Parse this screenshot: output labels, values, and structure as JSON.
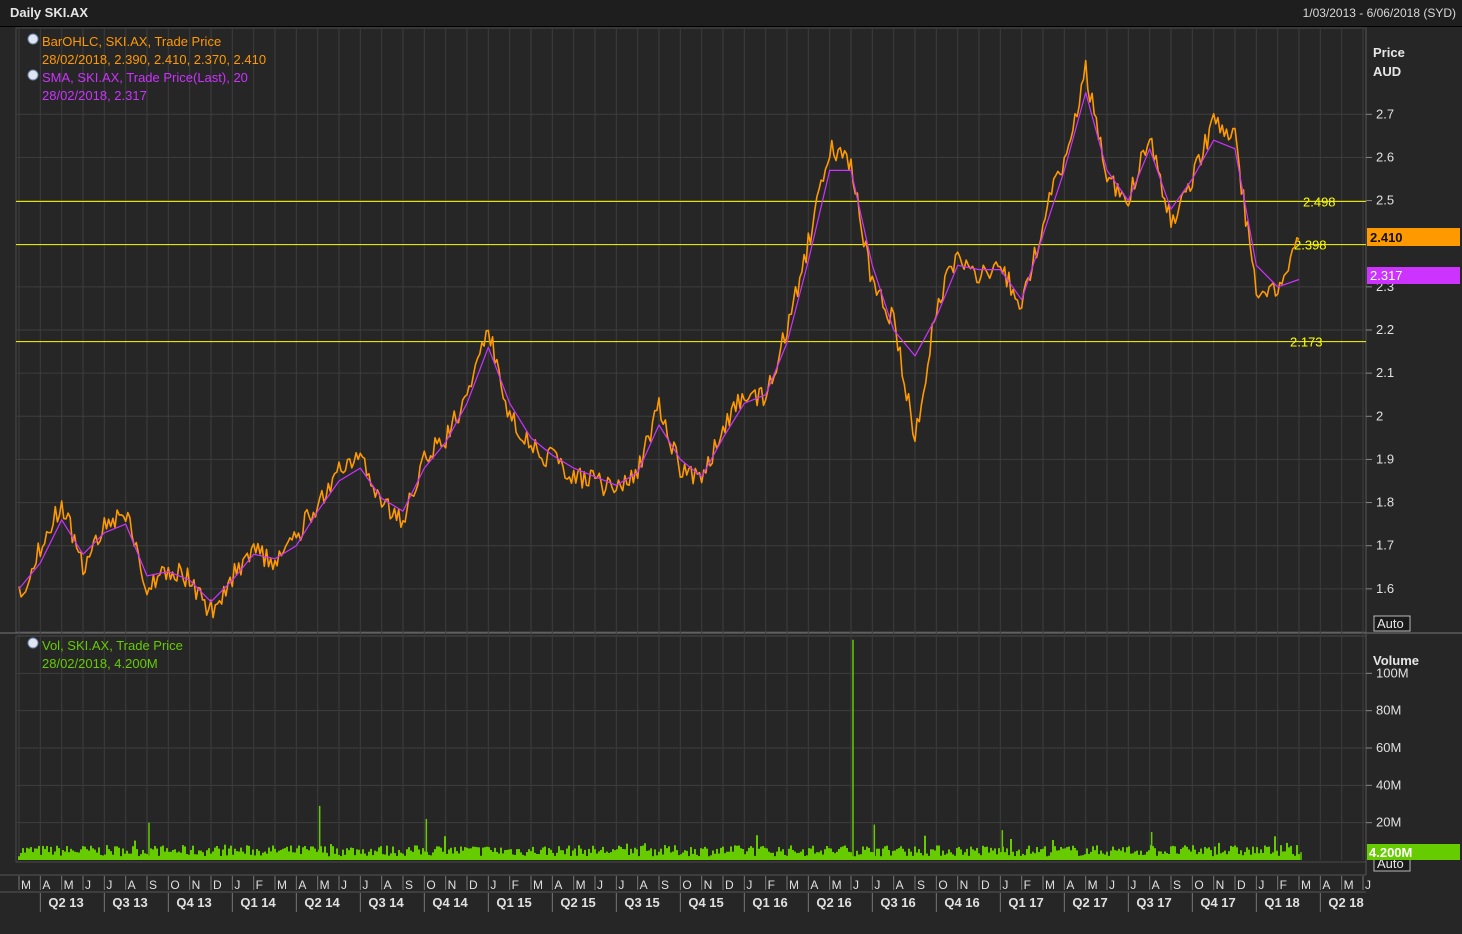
{
  "window": {
    "title": "Daily SKI.AX",
    "date_range": "1/03/2013 - 6/06/2018 (SYD)"
  },
  "colors": {
    "price": "#ff9900",
    "sma": "#cc33ff",
    "volume": "#66cc00",
    "hlines": "#ffff00",
    "bg": "#262626",
    "grid": "#3d3d3d",
    "axis_text": "#e0e0e0"
  },
  "legend": {
    "price_title": "BarOHLC, SKI.AX, Trade Price",
    "price_values": "28/02/2018, 2.390, 2.410, 2.370, 2.410",
    "sma_title": "SMA, SKI.AX, Trade Price(Last),  20",
    "sma_values": "28/02/2018, 2.317",
    "vol_title": "Vol, SKI.AX, Trade Price",
    "vol_values": "28/02/2018, 4.200M"
  },
  "axes": {
    "price_label_1": "Price",
    "price_label_2": "AUD",
    "volume_label": "Volume",
    "auto_button": "Auto",
    "auto_button_2": "Auto"
  },
  "badges": {
    "last_price": "2.410",
    "last_sma": "2.317",
    "last_volume": "4.200M"
  },
  "chart_data": {
    "type": "line",
    "price_ticks": [
      "1.6",
      "1.7",
      "1.8",
      "1.9",
      "2",
      "2.1",
      "2.2",
      "2.3",
      "2.5",
      "2.6",
      "2.7"
    ],
    "price_ylim": [
      1.5,
      2.9
    ],
    "volume_ticks": [
      "20M",
      "40M",
      "60M",
      "80M",
      "100M"
    ],
    "volume_ylim": [
      0,
      120
    ],
    "month_labels": [
      "M",
      "A",
      "M",
      "J",
      "J",
      "A",
      "S",
      "O",
      "N",
      "D",
      "J",
      "F",
      "M",
      "A",
      "M",
      "J",
      "J",
      "A",
      "S",
      "O",
      "N",
      "D",
      "J",
      "F",
      "M",
      "A",
      "M",
      "J",
      "J",
      "A",
      "S",
      "O",
      "N",
      "D",
      "J",
      "F",
      "M",
      "A",
      "M",
      "J",
      "J",
      "A",
      "S",
      "O",
      "N",
      "D",
      "J",
      "F",
      "M",
      "A",
      "M",
      "J",
      "J",
      "A",
      "S",
      "O",
      "N",
      "D",
      "J",
      "F",
      "M",
      "A",
      "M",
      "J"
    ],
    "quarter_labels": [
      "Q2 13",
      "Q3 13",
      "Q4 13",
      "Q1 14",
      "Q2 14",
      "Q3 14",
      "Q4 14",
      "Q1 15",
      "Q2 15",
      "Q3 15",
      "Q4 15",
      "Q1 16",
      "Q2 16",
      "Q3 16",
      "Q4 16",
      "Q1 17",
      "Q2 17",
      "Q3 17",
      "Q4 17",
      "Q1 18",
      "Q2 18"
    ],
    "horizontal_lines": [
      {
        "label": "2.498",
        "value": 2.498
      },
      {
        "label": "2.398",
        "value": 2.398
      },
      {
        "label": "2.173",
        "value": 2.173
      }
    ],
    "series": [
      {
        "name": "BarOHLC, SKI.AX, Trade Price",
        "month_index": [
          0,
          1,
          2,
          3,
          4,
          5,
          6,
          7,
          8,
          9,
          10,
          11,
          12,
          13,
          14,
          15,
          16,
          17,
          18,
          19,
          20,
          21,
          22,
          23,
          24,
          25,
          26,
          27,
          28,
          29,
          30,
          31,
          32,
          33,
          34,
          35,
          36,
          37,
          38,
          39,
          40,
          41,
          42,
          43,
          44,
          45,
          46,
          47,
          48,
          49,
          50,
          51,
          52,
          53,
          54,
          55,
          56,
          57,
          58,
          59,
          60
        ],
        "values": [
          1.58,
          1.7,
          1.8,
          1.65,
          1.75,
          1.78,
          1.6,
          1.65,
          1.62,
          1.55,
          1.63,
          1.7,
          1.65,
          1.72,
          1.8,
          1.87,
          1.9,
          1.8,
          1.76,
          1.9,
          1.95,
          2.05,
          2.2,
          2.0,
          1.93,
          1.9,
          1.86,
          1.85,
          1.83,
          1.87,
          2.02,
          1.88,
          1.85,
          1.97,
          2.05,
          2.05,
          2.2,
          2.4,
          2.62,
          2.58,
          2.3,
          2.22,
          1.95,
          2.25,
          2.38,
          2.33,
          2.35,
          2.25,
          2.45,
          2.6,
          2.8,
          2.55,
          2.5,
          2.65,
          2.45,
          2.55,
          2.68,
          2.65,
          2.28,
          2.3,
          2.41
        ]
      },
      {
        "name": "SMA, SKI.AX, Trade Price(Last),  20",
        "month_index": [
          0,
          1,
          2,
          3,
          4,
          5,
          6,
          7,
          8,
          9,
          10,
          11,
          12,
          13,
          14,
          15,
          16,
          17,
          18,
          19,
          20,
          21,
          22,
          23,
          24,
          25,
          26,
          27,
          28,
          29,
          30,
          31,
          32,
          33,
          34,
          35,
          36,
          37,
          38,
          39,
          40,
          41,
          42,
          43,
          44,
          45,
          46,
          47,
          48,
          49,
          50,
          51,
          52,
          53,
          54,
          55,
          56,
          57,
          58,
          59,
          60
        ],
        "values": [
          1.6,
          1.66,
          1.76,
          1.68,
          1.73,
          1.75,
          1.63,
          1.64,
          1.62,
          1.57,
          1.62,
          1.68,
          1.67,
          1.7,
          1.78,
          1.85,
          1.88,
          1.81,
          1.78,
          1.88,
          1.94,
          2.03,
          2.16,
          2.03,
          1.95,
          1.91,
          1.88,
          1.86,
          1.84,
          1.87,
          1.98,
          1.9,
          1.86,
          1.95,
          2.03,
          2.05,
          2.17,
          2.36,
          2.57,
          2.57,
          2.35,
          2.2,
          2.14,
          2.23,
          2.35,
          2.34,
          2.34,
          2.27,
          2.42,
          2.57,
          2.75,
          2.57,
          2.5,
          2.62,
          2.48,
          2.55,
          2.64,
          2.62,
          2.35,
          2.3,
          2.317
        ]
      }
    ],
    "volume": {
      "name": "Vol, SKI.AX, Trade Price",
      "typical_range_M": [
        2,
        8
      ],
      "spikes": [
        {
          "month_index": 6,
          "value_M": 20
        },
        {
          "month_index": 14,
          "value_M": 29
        },
        {
          "month_index": 19,
          "value_M": 22
        },
        {
          "month_index": 39,
          "value_M": 118
        },
        {
          "month_index": 40,
          "value_M": 19
        },
        {
          "month_index": 46,
          "value_M": 16
        },
        {
          "month_index": 53,
          "value_M": 15
        },
        {
          "month_index": 60,
          "value_M": 4.2
        }
      ]
    }
  }
}
